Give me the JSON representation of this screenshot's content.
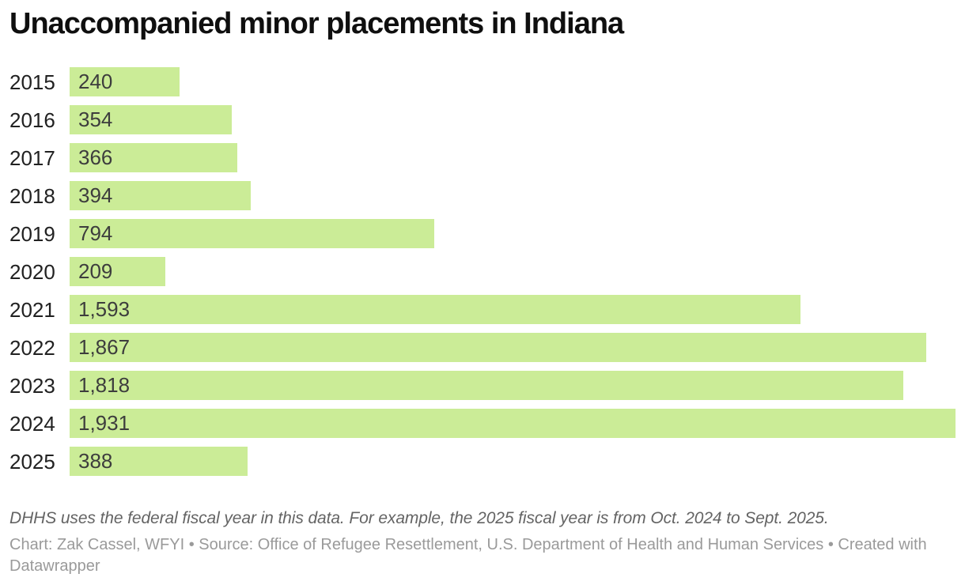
{
  "title": "Unaccompanied minor placements in Indiana",
  "chart_data": {
    "type": "bar",
    "orientation": "horizontal",
    "title": "Unaccompanied minor placements in Indiana",
    "categories": [
      "2015",
      "2016",
      "2017",
      "2018",
      "2019",
      "2020",
      "2021",
      "2022",
      "2023",
      "2024",
      "2025"
    ],
    "values": [
      240,
      354,
      366,
      394,
      794,
      209,
      1593,
      1867,
      1818,
      1931,
      388
    ],
    "value_labels": [
      "240",
      "354",
      "366",
      "394",
      "794",
      "209",
      "1,593",
      "1,867",
      "1,818",
      "1,931",
      "388"
    ],
    "xlabel": "",
    "ylabel": "",
    "xlim": [
      0,
      1931
    ],
    "grid": false,
    "legend": "none",
    "bar_color": "#cbec97",
    "label_position": "inside-start"
  },
  "footer": {
    "note": "DHHS uses the federal fiscal year in this data. For example, the 2025 fiscal year is from Oct. 2024 to Sept. 2025.",
    "attribution": "Chart: Zak Cassel, WFYI • Source: Office of Refugee Resettlement, U.S. Department of Health and Human Services • Created with Datawrapper"
  },
  "colors": {
    "background": "#ffffff",
    "bar": "#cbec97",
    "title_text": "#0f0f0f",
    "year_label_text": "#212121",
    "value_label_text": "#3d3d3d",
    "note_text": "#646464",
    "attribution_text": "#9a9a9a"
  }
}
